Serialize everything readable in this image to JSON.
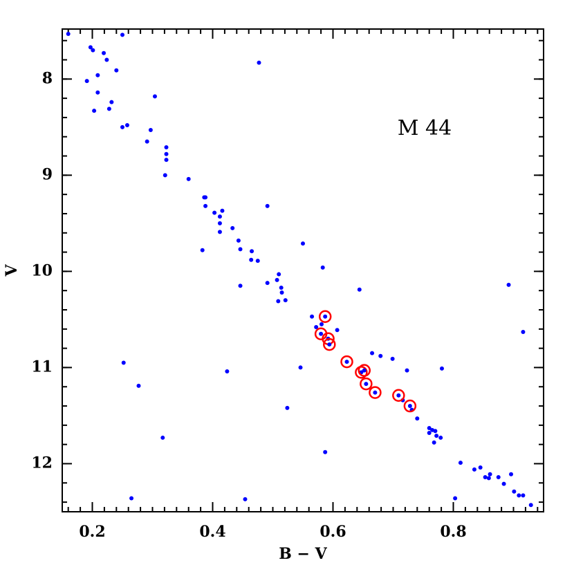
{
  "chart_data": {
    "type": "scatter",
    "annotation": "M 44",
    "x_label": "B − V",
    "y_label": "V",
    "xlim": [
      0.15,
      0.95
    ],
    "ylim": [
      7.48,
      12.5
    ],
    "y_inverted": true,
    "xticks": [
      0.2,
      0.4,
      0.6,
      0.8
    ],
    "yticks": [
      8,
      9,
      10,
      11,
      12
    ],
    "series": [
      {
        "color": "#0000ff",
        "marker": "dot",
        "x": [
          0.16,
          0.197,
          0.201,
          0.219,
          0.224,
          0.25,
          0.24,
          0.209,
          0.191,
          0.209,
          0.232,
          0.228,
          0.203,
          0.304,
          0.25,
          0.258,
          0.297,
          0.291,
          0.323,
          0.323,
          0.323,
          0.321,
          0.36,
          0.386,
          0.388,
          0.388,
          0.491,
          0.403,
          0.416,
          0.412,
          0.412,
          0.412,
          0.433,
          0.443,
          0.383,
          0.446,
          0.465,
          0.475,
          0.464,
          0.55,
          0.583,
          0.51,
          0.507,
          0.491,
          0.514,
          0.515,
          0.446,
          0.509,
          0.521,
          0.644,
          0.565,
          0.572,
          0.581,
          0.607,
          0.665,
          0.679,
          0.699,
          0.716,
          0.731,
          0.723,
          0.74,
          0.781,
          0.252,
          0.277,
          0.424,
          0.546,
          0.524,
          0.317,
          0.587,
          0.76,
          0.765,
          0.76,
          0.77,
          0.772,
          0.779,
          0.768,
          0.812,
          0.835,
          0.845,
          0.853,
          0.861,
          0.859,
          0.875,
          0.884,
          0.896,
          0.901,
          0.909,
          0.916,
          0.929,
          0.892,
          0.916,
          0.477,
          0.265,
          0.454,
          0.803
        ],
        "y": [
          7.53,
          7.67,
          7.7,
          7.73,
          7.8,
          7.54,
          7.91,
          7.96,
          8.02,
          8.14,
          8.24,
          8.31,
          8.33,
          8.18,
          8.5,
          8.48,
          8.53,
          8.65,
          8.71,
          8.78,
          8.84,
          9.0,
          9.04,
          9.23,
          9.23,
          9.32,
          9.32,
          9.39,
          9.37,
          9.43,
          9.5,
          9.59,
          9.55,
          9.68,
          9.78,
          9.77,
          9.79,
          9.89,
          9.88,
          9.71,
          9.96,
          10.03,
          10.09,
          10.12,
          10.17,
          10.22,
          10.15,
          10.31,
          10.3,
          10.19,
          10.47,
          10.58,
          10.55,
          10.61,
          10.85,
          10.88,
          10.91,
          11.34,
          11.44,
          11.03,
          11.53,
          11.01,
          10.95,
          11.19,
          11.04,
          11.0,
          11.42,
          11.73,
          11.88,
          11.63,
          11.65,
          11.68,
          11.66,
          11.71,
          11.73,
          11.78,
          11.99,
          12.06,
          12.04,
          12.14,
          12.11,
          12.15,
          12.14,
          12.21,
          12.11,
          12.29,
          12.33,
          12.33,
          12.43,
          10.14,
          10.63,
          7.83,
          12.36,
          12.37,
          12.36
        ]
      },
      {
        "color": "#ff0000",
        "marker": "circled-dot",
        "x": [
          0.587,
          0.58,
          0.592,
          0.594,
          0.623,
          0.647,
          0.652,
          0.655,
          0.67,
          0.709,
          0.728
        ],
        "y": [
          10.47,
          10.65,
          10.7,
          10.76,
          10.94,
          11.05,
          11.03,
          11.17,
          11.26,
          11.29,
          11.4
        ]
      }
    ]
  }
}
